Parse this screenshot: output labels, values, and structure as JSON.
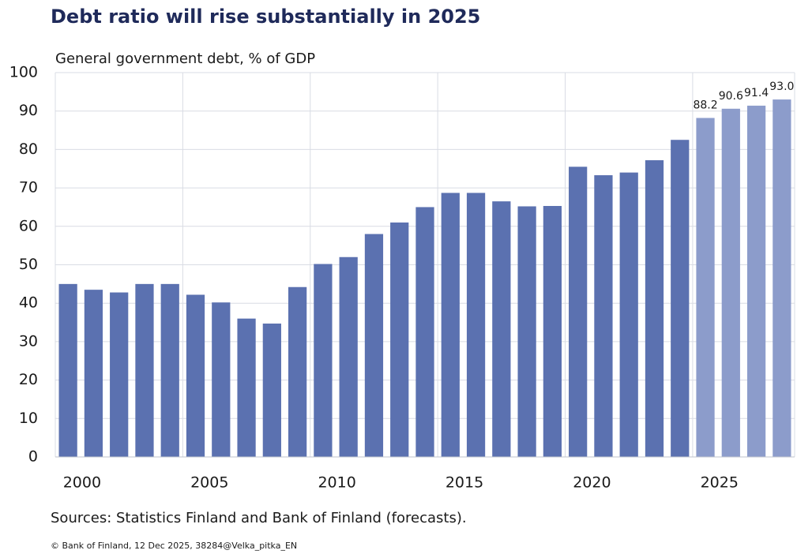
{
  "chart_data": {
    "type": "bar",
    "title": "Debt ratio will rise substantially in 2025",
    "subtitle": "General government debt, % of GDP",
    "source": "Sources: Statistics  Finland and Bank of Finland (forecasts).",
    "footer": "© Bank of Finland, 12 Dec 2025, 38284@Velka_pitka_EN",
    "categories": [
      "2000",
      null,
      null,
      null,
      null,
      "2005",
      null,
      null,
      null,
      null,
      "2010",
      null,
      null,
      null,
      null,
      "2015",
      null,
      null,
      null,
      null,
      "2020",
      null,
      null,
      null,
      null,
      "2025",
      null,
      null,
      null
    ],
    "values": [
      45,
      43.5,
      42.8,
      45,
      45,
      42.2,
      40.2,
      36,
      34.7,
      44.2,
      50.2,
      52,
      58,
      61,
      65,
      68.7,
      68.7,
      66.5,
      65.2,
      65.3,
      75.5,
      73.3,
      74,
      77.2,
      82.5,
      88.2,
      90.6,
      91.4,
      93.0
    ],
    "value_labels": [
      null,
      null,
      null,
      null,
      null,
      null,
      null,
      null,
      null,
      null,
      null,
      null,
      null,
      null,
      null,
      null,
      null,
      null,
      null,
      null,
      null,
      null,
      null,
      null,
      null,
      "88.2",
      "90.6",
      "91.4",
      "93.0"
    ],
    "colors": [
      "#5b71b0",
      "#5b71b0",
      "#5b71b0",
      "#5b71b0",
      "#5b71b0",
      "#5b71b0",
      "#5b71b0",
      "#5b71b0",
      "#5b71b0",
      "#5b71b0",
      "#5b71b0",
      "#5b71b0",
      "#5b71b0",
      "#5b71b0",
      "#5b71b0",
      "#5b71b0",
      "#5b71b0",
      "#5b71b0",
      "#5b71b0",
      "#5b71b0",
      "#5b71b0",
      "#5b71b0",
      "#5b71b0",
      "#5b71b0",
      "#5b71b0",
      "#8c9ccb",
      "#8c9ccb",
      "#8c9ccb",
      "#8c9ccb"
    ],
    "ylim": [
      0,
      100
    ],
    "yticks": [
      0,
      10,
      20,
      30,
      40,
      50,
      60,
      70,
      80,
      90,
      100
    ],
    "grid": true
  }
}
